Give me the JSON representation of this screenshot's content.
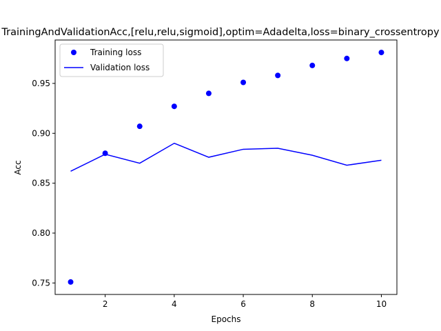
{
  "chart_data": {
    "type": "line",
    "title": "TrainingAndValidationAcc,[relu,relu,sigmoid],optim=Adadelta,loss=binary_crossentropy",
    "xlabel": "Epochs",
    "ylabel": "Acc",
    "xlim": [
      0.55,
      10.45
    ],
    "ylim": [
      0.7385,
      0.9935
    ],
    "xticks": [
      2,
      4,
      6,
      8,
      10
    ],
    "yticks": [
      0.75,
      0.8,
      0.85,
      0.9,
      0.95
    ],
    "ytick_labels": [
      "0.75",
      "0.80",
      "0.85",
      "0.90",
      "0.95"
    ],
    "x": [
      1,
      2,
      3,
      4,
      5,
      6,
      7,
      8,
      9,
      10
    ],
    "series": [
      {
        "name": "Training loss",
        "style": "markers",
        "color": "#0000ff",
        "values": [
          0.751,
          0.88,
          0.907,
          0.927,
          0.94,
          0.951,
          0.958,
          0.968,
          0.975,
          0.981
        ]
      },
      {
        "name": "Validation loss",
        "style": "line",
        "color": "#0000ff",
        "values": [
          0.862,
          0.879,
          0.87,
          0.89,
          0.876,
          0.884,
          0.885,
          0.878,
          0.868,
          0.873
        ]
      }
    ],
    "grid": false,
    "legend_position": "top-left"
  }
}
